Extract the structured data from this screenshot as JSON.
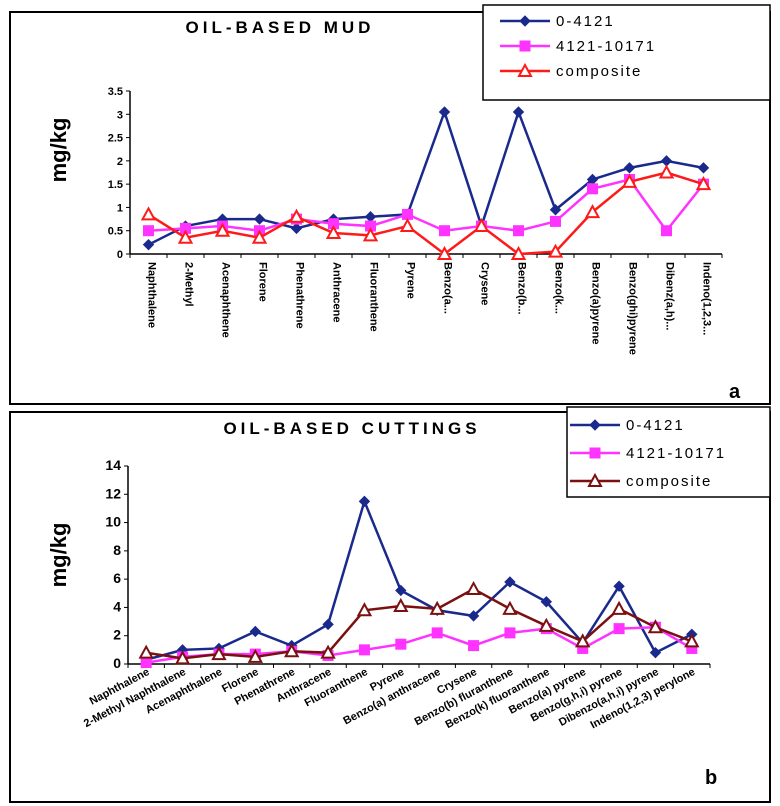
{
  "caption": "",
  "chart_data": [
    {
      "type": "line",
      "panel": "a",
      "title": "OIL-BASED MUD",
      "ylabel": "mg/kg",
      "xlabel": "",
      "ylim": [
        0,
        3.5
      ],
      "yticks": [
        "0",
        "0.5",
        "1",
        "1.5",
        "2",
        "2.5",
        "3",
        "3.5"
      ],
      "grid": false,
      "legend_position": "top-right",
      "categories": [
        "Naphthalene",
        "2-Methyl",
        "Acenaphthene",
        "Florene",
        "Phenathrene",
        "Anthracene",
        "Fluoranthene",
        "Pyrene",
        "Benzo(a...",
        "Crysene",
        "Benzo(b...",
        "Benzo(k...",
        "Benzo(a)pyrene",
        "Benzo(ghi)pyrene",
        "Dibenz(a,h)...",
        "Indeno(1,2,3..."
      ],
      "series": [
        {
          "name": "0-4121",
          "color": "#1a2a8c",
          "marker": "diamond",
          "values": [
            0.2,
            0.6,
            0.75,
            0.75,
            0.55,
            0.75,
            0.8,
            0.85,
            3.05,
            0.6,
            3.05,
            0.95,
            1.6,
            1.85,
            2.0,
            1.85
          ]
        },
        {
          "name": "4121-10171",
          "color": "#ff33ff",
          "marker": "square",
          "values": [
            0.5,
            0.55,
            0.6,
            0.5,
            0.75,
            0.65,
            0.6,
            0.85,
            0.5,
            0.6,
            0.5,
            0.7,
            1.4,
            1.6,
            0.5,
            1.5
          ]
        },
        {
          "name": "composite",
          "color": "#ff1a1a",
          "marker": "triangle",
          "values": [
            0.85,
            0.35,
            0.5,
            0.35,
            0.8,
            0.45,
            0.4,
            0.6,
            0.0,
            0.6,
            0.0,
            0.05,
            0.9,
            1.55,
            1.75,
            1.5
          ]
        }
      ]
    },
    {
      "type": "line",
      "panel": "b",
      "title": "OIL-BASED CUTTINGS",
      "ylabel": "mg/kg",
      "xlabel": "",
      "ylim": [
        0,
        14
      ],
      "yticks": [
        "0",
        "2",
        "4",
        "6",
        "8",
        "10",
        "12",
        "14"
      ],
      "grid": false,
      "legend_position": "top-right",
      "categories": [
        "Naphthalene",
        "2-Methyl Naphthalene",
        "Acenaphthalene",
        "Florene",
        "Phenathrene",
        "Anthracene",
        "Fluoranthene",
        "Pyrene",
        "Benzo(a) anthracene",
        "Crysene",
        "Benzo(b) fluranthene",
        "Benzo(k) fluoranthene",
        "Benzo(a) pyrene",
        "Benzo(g,h,i) pyrene",
        "Dibenzo(a,h,i) pyrene",
        "Indeno(1,2,3) perylone"
      ],
      "series": [
        {
          "name": "0-4121",
          "color": "#1a2a8c",
          "marker": "diamond",
          "values": [
            0.3,
            1.0,
            1.1,
            2.3,
            1.3,
            2.8,
            11.5,
            5.2,
            3.8,
            3.4,
            5.8,
            4.4,
            1.5,
            5.5,
            0.8,
            2.1
          ]
        },
        {
          "name": "4121-10171",
          "color": "#ff33ff",
          "marker": "square",
          "values": [
            0.1,
            0.5,
            0.7,
            0.7,
            0.9,
            0.6,
            1.0,
            1.4,
            2.2,
            1.3,
            2.2,
            2.5,
            1.1,
            2.5,
            2.6,
            1.1
          ]
        },
        {
          "name": "composite",
          "color": "#7a1010",
          "marker": "triangle",
          "values": [
            0.8,
            0.4,
            0.7,
            0.5,
            0.9,
            0.8,
            3.8,
            4.1,
            3.9,
            5.3,
            3.9,
            2.7,
            1.6,
            3.9,
            2.6,
            1.6
          ]
        }
      ]
    }
  ]
}
